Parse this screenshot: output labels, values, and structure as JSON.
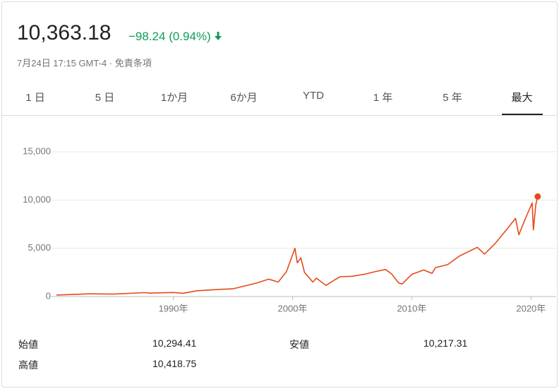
{
  "header": {
    "price": "10,363.18",
    "change": "−98.24 (0.94%)",
    "timestamp": "7月24日 17:15 GMT-4",
    "disclaimer": "免責条項"
  },
  "tabs": [
    "1 日",
    "5 日",
    "1か月",
    "6か月",
    "YTD",
    "1 年",
    "5 年",
    "最大"
  ],
  "selected_tab": "最大",
  "chart_data": {
    "type": "line",
    "color": "#e64a19",
    "x": [
      1980.2,
      1983,
      1985,
      1987.6,
      1988,
      1990,
      1990.8,
      1992,
      1994,
      1995,
      1996,
      1997,
      1998,
      1998.8,
      1999.5,
      2000.2,
      2000.4,
      2000.7,
      2001,
      2001.7,
      2002,
      2002.8,
      2003.5,
      2004,
      2005,
      2006,
      2007,
      2007.8,
      2008.3,
      2008.9,
      2009.2,
      2010,
      2011,
      2011.7,
      2012,
      2013,
      2014,
      2015.5,
      2016.1,
      2017,
      2018,
      2018.7,
      2018.98,
      2019.5,
      2020.1,
      2020.2,
      2020.4,
      2020.56
    ],
    "values": [
      150,
      280,
      250,
      400,
      350,
      420,
      340,
      600,
      750,
      800,
      1100,
      1400,
      1800,
      1500,
      2600,
      5000,
      3500,
      4000,
      2500,
      1500,
      1900,
      1150,
      1700,
      2050,
      2100,
      2300,
      2600,
      2800,
      2350,
      1400,
      1300,
      2300,
      2750,
      2400,
      3000,
      3300,
      4200,
      5100,
      4400,
      5500,
      7000,
      8100,
      6400,
      8000,
      9700,
      6900,
      9500,
      10363.18
    ],
    "xlim": [
      1980.2,
      2020.75
    ],
    "ylim": [
      0,
      15000
    ],
    "xticks": [
      {
        "value": 1990,
        "label": "1990年"
      },
      {
        "value": 2000,
        "label": "2000年"
      },
      {
        "value": 2010,
        "label": "2010年"
      },
      {
        "value": 2020,
        "label": "2020年"
      }
    ],
    "yticks": [
      0,
      {
        "value": 5000,
        "label": "5,000"
      },
      {
        "value": 10000,
        "label": "10,000"
      },
      {
        "value": 15000,
        "label": "15,000"
      }
    ],
    "grid": true
  },
  "stats": [
    {
      "label": "始値",
      "value": "10,294.41"
    },
    {
      "label": "安値",
      "value": "10,217.31"
    },
    {
      "label": "高値",
      "value": "10,418.75"
    }
  ]
}
